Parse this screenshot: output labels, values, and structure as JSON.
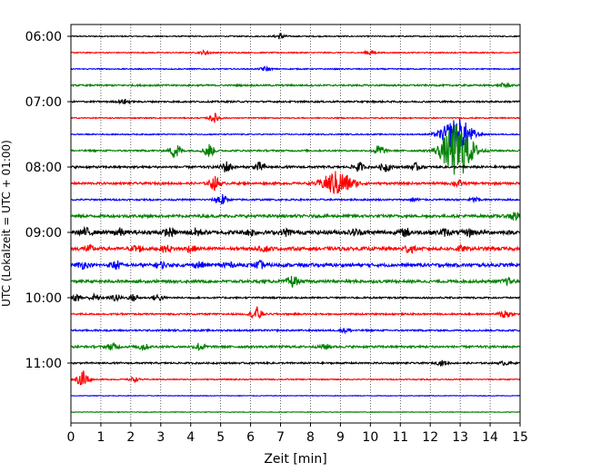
{
  "chart_data": {
    "type": "line",
    "xlabel": "Zeit  [min]",
    "ylabel": "UTC (Lokalzeit = UTC + 01:00)",
    "xlim": [
      0,
      15
    ],
    "x_ticks": [
      "0",
      "1",
      "2",
      "3",
      "4",
      "5",
      "6",
      "7",
      "8",
      "9",
      "10",
      "11",
      "12",
      "13",
      "14",
      "15"
    ],
    "y_tick_labels": [
      "06:00",
      "07:00",
      "08:00",
      "09:00",
      "10:00",
      "11:00"
    ],
    "grid": "vertical dotted",
    "line_colors": [
      "#000000",
      "#ff0000",
      "#0000ff",
      "#008000"
    ],
    "traces": [
      {
        "start": "06:00",
        "color": "#000000",
        "events": [
          [
            7.0,
            0.5
          ]
        ],
        "noise": 0.1
      },
      {
        "start": "06:15",
        "color": "#ff0000",
        "events": [
          [
            4.5,
            0.4
          ],
          [
            10.0,
            0.4
          ]
        ],
        "noise": 0.1
      },
      {
        "start": "06:30",
        "color": "#0000ff",
        "events": [
          [
            6.5,
            0.4
          ]
        ],
        "noise": 0.1
      },
      {
        "start": "06:45",
        "color": "#008000",
        "events": [
          [
            14.5,
            0.4
          ]
        ],
        "noise": 0.15
      },
      {
        "start": "07:00",
        "color": "#000000",
        "events": [
          [
            1.8,
            0.4
          ]
        ],
        "noise": 0.15
      },
      {
        "start": "07:15",
        "color": "#ff0000",
        "events": [
          [
            4.8,
            0.8
          ]
        ],
        "noise": 0.1
      },
      {
        "start": "07:30",
        "color": "#0000ff",
        "events": [
          [
            12.9,
            3.0
          ]
        ],
        "noise": 0.1
      },
      {
        "start": "07:45",
        "color": "#008000",
        "events": [
          [
            3.5,
            1.5
          ],
          [
            4.6,
            1.3
          ],
          [
            10.3,
            1.0
          ],
          [
            12.9,
            5.0
          ]
        ],
        "noise": 0.15
      },
      {
        "start": "08:00",
        "color": "#000000",
        "events": [
          [
            5.2,
            1.0
          ],
          [
            6.3,
            0.8
          ],
          [
            9.6,
            0.8
          ],
          [
            10.5,
            0.8
          ],
          [
            11.5,
            0.6
          ]
        ],
        "noise": 0.2
      },
      {
        "start": "08:15",
        "color": "#ff0000",
        "events": [
          [
            4.8,
            1.2
          ],
          [
            8.9,
            2.2
          ],
          [
            12.9,
            0.6
          ]
        ],
        "noise": 0.2
      },
      {
        "start": "08:30",
        "color": "#0000ff",
        "events": [
          [
            5.0,
            1.2
          ],
          [
            11.5,
            0.4
          ],
          [
            13.5,
            0.4
          ]
        ],
        "noise": 0.15
      },
      {
        "start": "08:45",
        "color": "#008000",
        "events": [
          [
            14.8,
            0.8
          ]
        ],
        "noise": 0.25
      },
      {
        "start": "09:00",
        "color": "#000000",
        "events": [
          [
            0.5,
            0.6
          ],
          [
            1.6,
            0.6
          ],
          [
            3.3,
            0.6
          ],
          [
            4.2,
            0.6
          ],
          [
            6.0,
            0.5
          ],
          [
            7.2,
            0.5
          ],
          [
            9.5,
            0.5
          ],
          [
            11.2,
            0.6
          ],
          [
            12.5,
            0.5
          ],
          [
            13.3,
            0.5
          ]
        ],
        "noise": 0.35
      },
      {
        "start": "09:15",
        "color": "#ff0000",
        "events": [
          [
            0.6,
            0.5
          ],
          [
            2.2,
            0.6
          ],
          [
            3.2,
            0.5
          ],
          [
            4.0,
            0.5
          ],
          [
            6.5,
            0.4
          ],
          [
            11.3,
            0.7
          ],
          [
            13.0,
            0.4
          ]
        ],
        "noise": 0.3
      },
      {
        "start": "09:30",
        "color": "#0000ff",
        "events": [
          [
            0.4,
            0.5
          ],
          [
            1.5,
            0.7
          ],
          [
            3.0,
            0.5
          ],
          [
            4.3,
            0.5
          ],
          [
            5.2,
            0.6
          ],
          [
            6.3,
            0.6
          ]
        ],
        "noise": 0.3
      },
      {
        "start": "09:45",
        "color": "#008000",
        "events": [
          [
            7.4,
            1.0
          ],
          [
            14.6,
            0.5
          ]
        ],
        "noise": 0.25
      },
      {
        "start": "10:00",
        "color": "#000000",
        "events": [
          [
            0.2,
            0.6
          ],
          [
            0.8,
            0.6
          ],
          [
            1.5,
            0.6
          ],
          [
            2.1,
            0.6
          ],
          [
            2.9,
            0.6
          ]
        ],
        "noise": 0.15
      },
      {
        "start": "10:15",
        "color": "#ff0000",
        "events": [
          [
            6.2,
            1.3
          ],
          [
            14.5,
            0.9
          ]
        ],
        "noise": 0.15
      },
      {
        "start": "10:30",
        "color": "#0000ff",
        "events": [
          [
            9.2,
            0.4
          ]
        ],
        "noise": 0.15
      },
      {
        "start": "10:45",
        "color": "#008000",
        "events": [
          [
            1.4,
            0.6
          ],
          [
            2.4,
            0.6
          ],
          [
            4.3,
            0.7
          ],
          [
            8.5,
            0.4
          ]
        ],
        "noise": 0.2
      },
      {
        "start": "11:00",
        "color": "#000000",
        "events": [
          [
            12.4,
            0.4
          ],
          [
            14.5,
            0.3
          ]
        ],
        "noise": 0.15
      },
      {
        "start": "11:15",
        "color": "#ff0000",
        "events": [
          [
            0.4,
            2.0
          ],
          [
            2.1,
            0.4
          ]
        ],
        "noise": 0.1
      },
      {
        "start": "11:30",
        "color": "#0000ff",
        "events": [],
        "noise": 0.06
      },
      {
        "start": "11:45",
        "color": "#008000",
        "events": [],
        "noise": 0.06
      }
    ]
  }
}
